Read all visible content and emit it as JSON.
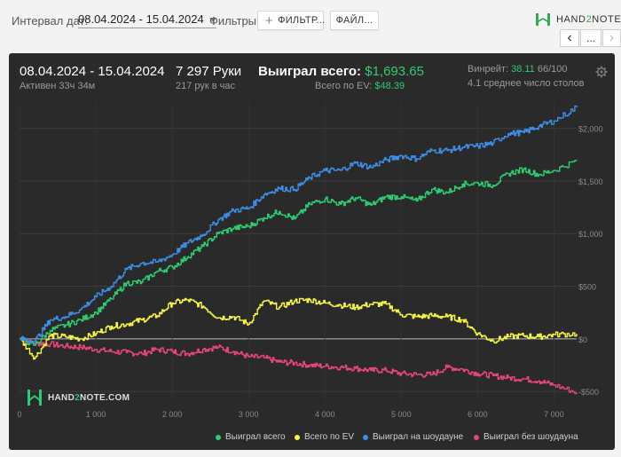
{
  "toolbar": {
    "date_label": "Интервал дат:",
    "date_value": "08.04.2024 - 15.04.2024",
    "filters_label": "Фильтры:",
    "filter_button": "ФИЛЬТР...",
    "file_button": "ФАЙЛ...",
    "logo_prefix": "HAND",
    "logo_two": "2",
    "logo_suffix": "NOTE.COM",
    "nav_prev": "‹",
    "nav_more": "...",
    "nav_next": "›"
  },
  "summary": {
    "date_range": "08.04.2024 - 15.04.2024",
    "active": "Активен 33ч 34м",
    "hands": "7 297 Руки",
    "hands_per_hour": "217 рук в час",
    "won_label": "Выиграл всего:",
    "won_value": "$1,693.65",
    "ev_label": "Всего по EV:",
    "ev_value": "$48.39",
    "winrate_label": "Винрейт:",
    "winrate_value": "38.11",
    "winrate_unit": "66/100",
    "avg_tables": "4.1 среднее число столов"
  },
  "watermark": {
    "prefix": "HAND",
    "two": "2",
    "suffix": "NOTE.COM"
  },
  "colors": {
    "won": "#2ecc71",
    "ev": "#f5f542",
    "showdown": "#3d8ee6",
    "non_showdown": "#e8457a",
    "panel": "#2a2a2a"
  },
  "chart_data": {
    "type": "line",
    "title": "",
    "xlabel": "",
    "ylabel": "",
    "xlim": [
      0,
      7297
    ],
    "ylim": [
      -600,
      2250
    ],
    "x_ticks": [
      0,
      1000,
      2000,
      3000,
      4000,
      5000,
      6000,
      7000
    ],
    "x_tick_labels": [
      "0",
      "1 000",
      "2 000",
      "3 000",
      "4 000",
      "5 000",
      "6 000",
      "7 000"
    ],
    "y_ticks": [
      -500,
      0,
      500,
      1000,
      1500,
      2000
    ],
    "y_tick_labels": [
      "-$500",
      "$0",
      "$500",
      "$1,000",
      "$1,500",
      "$2,000"
    ],
    "grid": true,
    "legend_position": "bottom-right",
    "x": [
      0,
      200,
      400,
      600,
      800,
      1000,
      1200,
      1400,
      1600,
      1800,
      2000,
      2200,
      2400,
      2600,
      2800,
      3000,
      3200,
      3400,
      3600,
      3800,
      4000,
      4200,
      4400,
      4600,
      4800,
      5000,
      5200,
      5400,
      5600,
      5800,
      6000,
      6200,
      6400,
      6600,
      6800,
      7000,
      7297
    ],
    "series": [
      {
        "name": "Выиграл всего",
        "color": "#2ecc71",
        "values": [
          0,
          -60,
          80,
          130,
          180,
          250,
          380,
          530,
          540,
          640,
          680,
          780,
          880,
          1000,
          1050,
          1070,
          1150,
          1210,
          1140,
          1280,
          1330,
          1280,
          1340,
          1270,
          1350,
          1350,
          1310,
          1420,
          1390,
          1470,
          1480,
          1460,
          1570,
          1610,
          1560,
          1600,
          1693
        ]
      },
      {
        "name": "Всего по EV",
        "color": "#f5f542",
        "values": [
          0,
          -180,
          30,
          20,
          0,
          50,
          120,
          140,
          180,
          220,
          340,
          370,
          310,
          200,
          210,
          140,
          360,
          300,
          360,
          370,
          340,
          320,
          300,
          330,
          330,
          230,
          210,
          220,
          210,
          180,
          50,
          -20,
          20,
          30,
          20,
          40,
          48
        ]
      },
      {
        "name": "Выиграл на шоудауне",
        "color": "#3d8ee6",
        "values": [
          0,
          -20,
          180,
          210,
          280,
          400,
          500,
          660,
          720,
          730,
          800,
          910,
          990,
          1130,
          1220,
          1240,
          1370,
          1430,
          1420,
          1530,
          1600,
          1600,
          1670,
          1630,
          1700,
          1740,
          1710,
          1790,
          1790,
          1820,
          1830,
          1860,
          1950,
          1960,
          2020,
          2070,
          2200
        ]
      },
      {
        "name": "Выиграл без шоудауна",
        "color": "#e8457a",
        "values": [
          0,
          -40,
          -50,
          -70,
          -80,
          -100,
          -120,
          -130,
          -140,
          -100,
          -120,
          -140,
          -100,
          -80,
          -120,
          -170,
          -180,
          -220,
          -230,
          -250,
          -260,
          -270,
          -280,
          -300,
          -300,
          -330,
          -340,
          -340,
          -270,
          -290,
          -330,
          -350,
          -370,
          -380,
          -400,
          -440,
          -510
        ]
      }
    ]
  }
}
